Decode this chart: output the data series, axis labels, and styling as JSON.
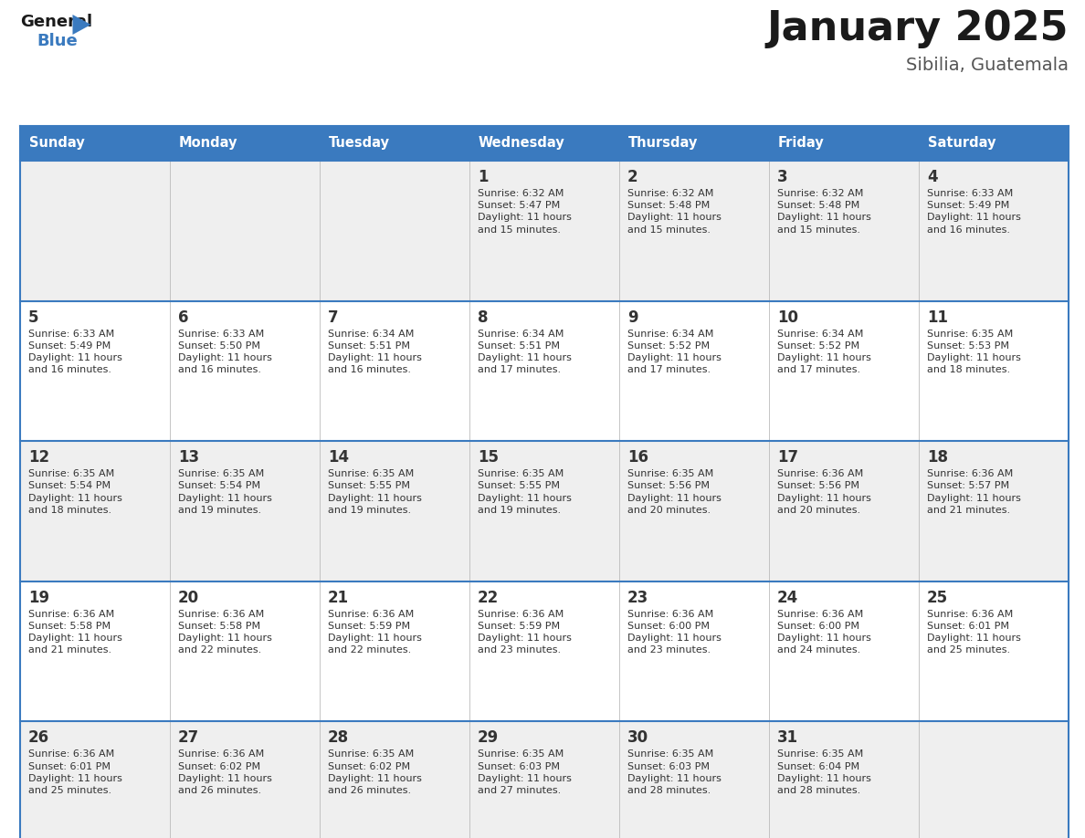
{
  "title": "January 2025",
  "subtitle": "Sibilia, Guatemala",
  "days_of_week": [
    "Sunday",
    "Monday",
    "Tuesday",
    "Wednesday",
    "Thursday",
    "Friday",
    "Saturday"
  ],
  "header_bg": "#3a7abf",
  "header_text": "#ffffff",
  "row_bg_odd": "#efefef",
  "row_bg_even": "#ffffff",
  "cell_text_color": "#333333",
  "border_color": "#3a7abf",
  "title_color": "#1a1a1a",
  "subtitle_color": "#555555",
  "calendar_data": [
    [
      {
        "day": null,
        "sunrise": null,
        "sunset": null,
        "daylight": null
      },
      {
        "day": null,
        "sunrise": null,
        "sunset": null,
        "daylight": null
      },
      {
        "day": null,
        "sunrise": null,
        "sunset": null,
        "daylight": null
      },
      {
        "day": 1,
        "sunrise": "6:32 AM",
        "sunset": "5:47 PM",
        "daylight": "11 hours and 15 minutes."
      },
      {
        "day": 2,
        "sunrise": "6:32 AM",
        "sunset": "5:48 PM",
        "daylight": "11 hours and 15 minutes."
      },
      {
        "day": 3,
        "sunrise": "6:32 AM",
        "sunset": "5:48 PM",
        "daylight": "11 hours and 15 minutes."
      },
      {
        "day": 4,
        "sunrise": "6:33 AM",
        "sunset": "5:49 PM",
        "daylight": "11 hours and 16 minutes."
      }
    ],
    [
      {
        "day": 5,
        "sunrise": "6:33 AM",
        "sunset": "5:49 PM",
        "daylight": "11 hours and 16 minutes."
      },
      {
        "day": 6,
        "sunrise": "6:33 AM",
        "sunset": "5:50 PM",
        "daylight": "11 hours and 16 minutes."
      },
      {
        "day": 7,
        "sunrise": "6:34 AM",
        "sunset": "5:51 PM",
        "daylight": "11 hours and 16 minutes."
      },
      {
        "day": 8,
        "sunrise": "6:34 AM",
        "sunset": "5:51 PM",
        "daylight": "11 hours and 17 minutes."
      },
      {
        "day": 9,
        "sunrise": "6:34 AM",
        "sunset": "5:52 PM",
        "daylight": "11 hours and 17 minutes."
      },
      {
        "day": 10,
        "sunrise": "6:34 AM",
        "sunset": "5:52 PM",
        "daylight": "11 hours and 17 minutes."
      },
      {
        "day": 11,
        "sunrise": "6:35 AM",
        "sunset": "5:53 PM",
        "daylight": "11 hours and 18 minutes."
      }
    ],
    [
      {
        "day": 12,
        "sunrise": "6:35 AM",
        "sunset": "5:54 PM",
        "daylight": "11 hours and 18 minutes."
      },
      {
        "day": 13,
        "sunrise": "6:35 AM",
        "sunset": "5:54 PM",
        "daylight": "11 hours and 19 minutes."
      },
      {
        "day": 14,
        "sunrise": "6:35 AM",
        "sunset": "5:55 PM",
        "daylight": "11 hours and 19 minutes."
      },
      {
        "day": 15,
        "sunrise": "6:35 AM",
        "sunset": "5:55 PM",
        "daylight": "11 hours and 19 minutes."
      },
      {
        "day": 16,
        "sunrise": "6:35 AM",
        "sunset": "5:56 PM",
        "daylight": "11 hours and 20 minutes."
      },
      {
        "day": 17,
        "sunrise": "6:36 AM",
        "sunset": "5:56 PM",
        "daylight": "11 hours and 20 minutes."
      },
      {
        "day": 18,
        "sunrise": "6:36 AM",
        "sunset": "5:57 PM",
        "daylight": "11 hours and 21 minutes."
      }
    ],
    [
      {
        "day": 19,
        "sunrise": "6:36 AM",
        "sunset": "5:58 PM",
        "daylight": "11 hours and 21 minutes."
      },
      {
        "day": 20,
        "sunrise": "6:36 AM",
        "sunset": "5:58 PM",
        "daylight": "11 hours and 22 minutes."
      },
      {
        "day": 21,
        "sunrise": "6:36 AM",
        "sunset": "5:59 PM",
        "daylight": "11 hours and 22 minutes."
      },
      {
        "day": 22,
        "sunrise": "6:36 AM",
        "sunset": "5:59 PM",
        "daylight": "11 hours and 23 minutes."
      },
      {
        "day": 23,
        "sunrise": "6:36 AM",
        "sunset": "6:00 PM",
        "daylight": "11 hours and 23 minutes."
      },
      {
        "day": 24,
        "sunrise": "6:36 AM",
        "sunset": "6:00 PM",
        "daylight": "11 hours and 24 minutes."
      },
      {
        "day": 25,
        "sunrise": "6:36 AM",
        "sunset": "6:01 PM",
        "daylight": "11 hours and 25 minutes."
      }
    ],
    [
      {
        "day": 26,
        "sunrise": "6:36 AM",
        "sunset": "6:01 PM",
        "daylight": "11 hours and 25 minutes."
      },
      {
        "day": 27,
        "sunrise": "6:36 AM",
        "sunset": "6:02 PM",
        "daylight": "11 hours and 26 minutes."
      },
      {
        "day": 28,
        "sunrise": "6:35 AM",
        "sunset": "6:02 PM",
        "daylight": "11 hours and 26 minutes."
      },
      {
        "day": 29,
        "sunrise": "6:35 AM",
        "sunset": "6:03 PM",
        "daylight": "11 hours and 27 minutes."
      },
      {
        "day": 30,
        "sunrise": "6:35 AM",
        "sunset": "6:03 PM",
        "daylight": "11 hours and 28 minutes."
      },
      {
        "day": 31,
        "sunrise": "6:35 AM",
        "sunset": "6:04 PM",
        "daylight": "11 hours and 28 minutes."
      },
      {
        "day": null,
        "sunrise": null,
        "sunset": null,
        "daylight": null
      }
    ]
  ],
  "logo_color_general": "#1a1a1a",
  "logo_color_blue": "#3a7abf",
  "logo_triangle_color": "#3a7abf",
  "fig_width": 11.88,
  "fig_height": 9.18
}
